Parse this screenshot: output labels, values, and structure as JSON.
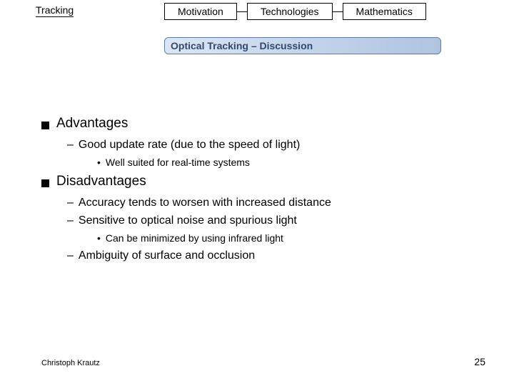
{
  "header": {
    "tracking_label": "Tracking",
    "tabs": [
      "Motivation",
      "Technologies",
      "Mathematics"
    ],
    "title": "Optical Tracking – Discussion"
  },
  "content": {
    "sections": [
      {
        "heading": "Advantages",
        "items": [
          {
            "text": "Good update rate (due to the speed of light)",
            "sub": [
              "Well suited for real-time systems"
            ]
          }
        ]
      },
      {
        "heading": "Disadvantages",
        "items": [
          {
            "text": "Accuracy tends to worsen with increased distance",
            "sub": []
          },
          {
            "text": "Sensitive to optical noise and spurious light",
            "sub": [
              "Can be minimized by using infrared light"
            ]
          },
          {
            "text": "Ambiguity of surface and occlusion",
            "sub": []
          }
        ]
      }
    ]
  },
  "footer": {
    "author": "Christoph Krautz",
    "page": "25"
  },
  "styles": {
    "title_bg_from": "#dce6f2",
    "title_bg_to": "#b0c4df",
    "title_border": "#5b7ca8",
    "title_text": "#2e4a6e",
    "text_color": "#000000",
    "background": "#ffffff",
    "lvl1_fontsize": 19,
    "lvl2_fontsize": 16,
    "lvl3_fontsize": 14,
    "tracking_underline_width": 170
  }
}
